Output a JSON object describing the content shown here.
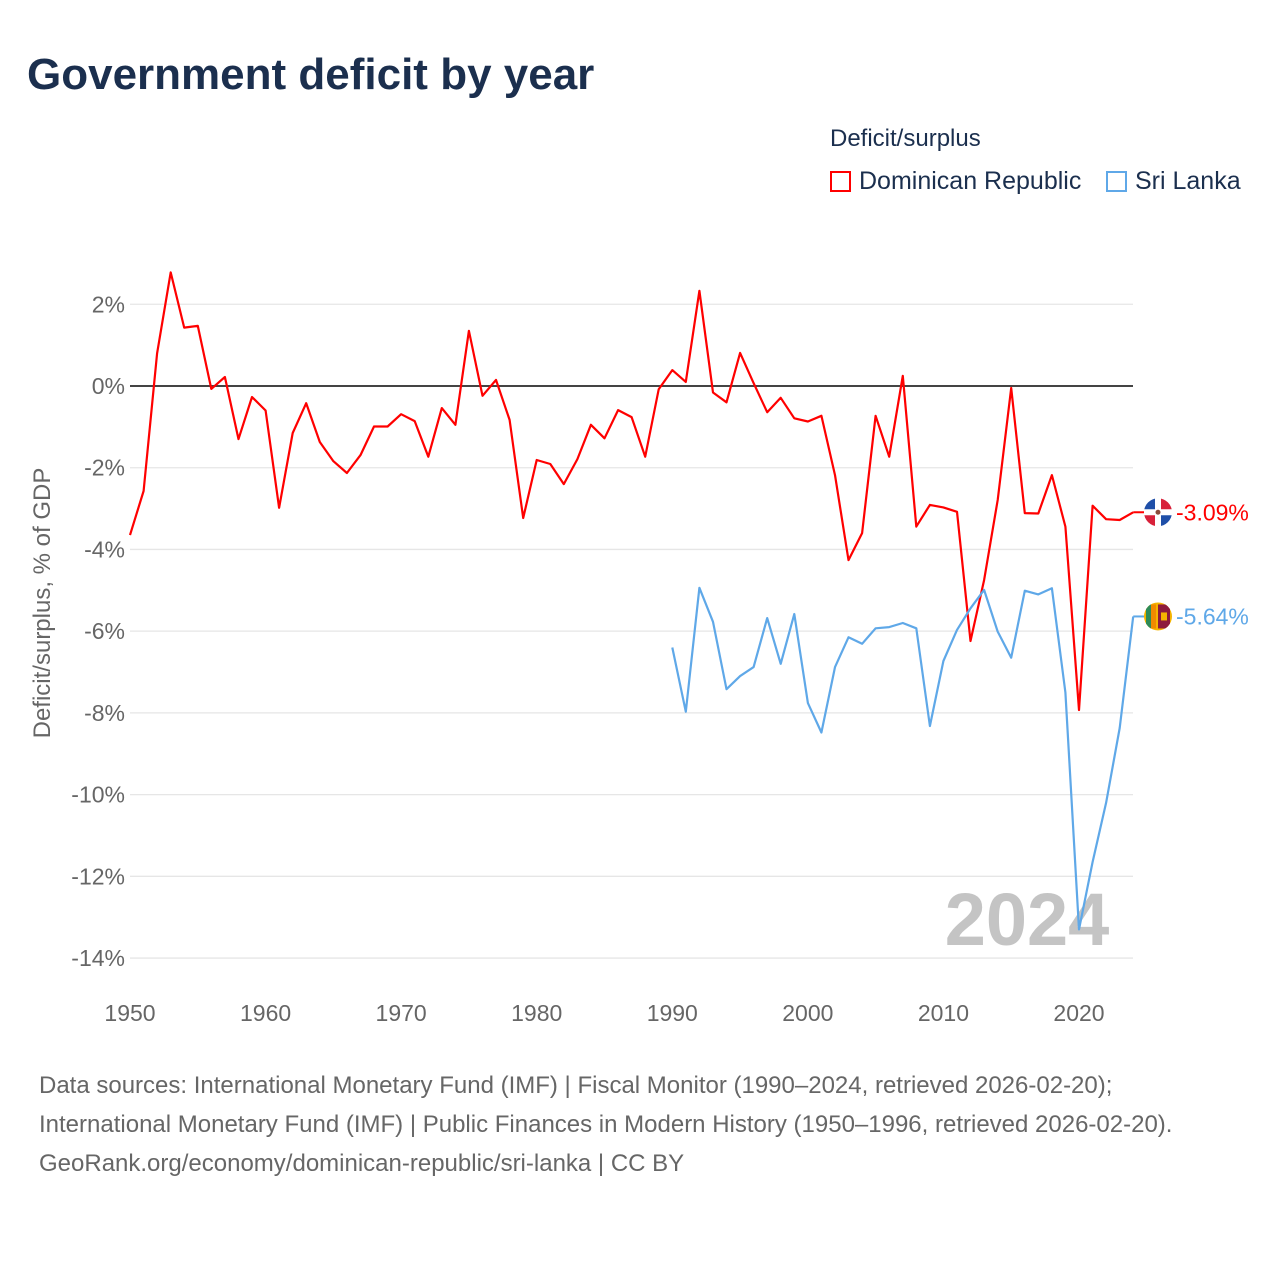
{
  "title": "Government deficit by year",
  "legend": {
    "title": "Deficit/surplus",
    "position": "top-right"
  },
  "year_watermark": "2024",
  "footer": {
    "sources": "Data sources: International Monetary Fund (IMF) | Fiscal Monitor (1990–2024, retrieved 2026-02-20); International Monetary Fund (IMF) | Public Finances in Modern History (1950–1996, retrieved 2026-02-20).",
    "credit": "GeoRank.org/economy/dominican-republic/sri-lanka | CC BY"
  },
  "chart_data": {
    "type": "line",
    "title": "Government deficit by year",
    "xlabel": "",
    "ylabel": "Deficit/surplus, % of GDP",
    "xlim": [
      1950,
      2024
    ],
    "ylim": [
      -14.6,
      3
    ],
    "x_ticks": [
      1950,
      1960,
      1970,
      1980,
      1990,
      2000,
      2010,
      2020
    ],
    "y_ticks": [
      2,
      0,
      -2,
      -4,
      -6,
      -8,
      -10,
      -12,
      -14
    ],
    "y_tick_labels": [
      "2%",
      "0%",
      "-2%",
      "-4%",
      "-6%",
      "-8%",
      "-10%",
      "-12%",
      "-14%"
    ],
    "x_tick_labels": [
      "1950",
      "1960",
      "1970",
      "1980",
      "1990",
      "2000",
      "2010",
      "2020"
    ],
    "grid": true,
    "series": [
      {
        "name": "Dominican Republic",
        "color": "#ff0000",
        "start_year": 1950,
        "end_label": "-3.09%",
        "values": [
          -3.65,
          -2.57,
          0.8,
          2.78,
          1.43,
          1.47,
          -0.07,
          0.22,
          -1.3,
          -0.27,
          -0.6,
          -2.98,
          -1.15,
          -0.42,
          -1.37,
          -1.84,
          -2.13,
          -1.69,
          -0.99,
          -0.99,
          -0.69,
          -0.86,
          -1.73,
          -0.54,
          -0.95,
          1.35,
          -0.24,
          0.15,
          -0.83,
          -3.23,
          -1.81,
          -1.91,
          -2.4,
          -1.79,
          -0.95,
          -1.28,
          -0.59,
          -0.76,
          -1.73,
          -0.08,
          0.39,
          0.1,
          2.33,
          -0.16,
          -0.4,
          0.81,
          0.07,
          -0.64,
          -0.29,
          -0.79,
          -0.87,
          -0.73,
          -2.18,
          -4.26,
          -3.6,
          -0.73,
          -1.73,
          0.25,
          -3.44,
          -2.91,
          -2.97,
          -3.08,
          -6.24,
          -4.75,
          -2.79,
          -0.05,
          -3.11,
          -3.12,
          -2.18,
          -3.44,
          -7.93,
          -2.93,
          -3.26,
          -3.28,
          -3.09
        ]
      },
      {
        "name": "Sri Lanka",
        "color": "#5fa8e8",
        "start_year": 1990,
        "end_label": "-5.64%",
        "values": [
          -6.4,
          -7.97,
          -4.94,
          -5.77,
          -7.42,
          -7.1,
          -6.88,
          -5.68,
          -6.8,
          -5.58,
          -7.76,
          -8.48,
          -6.88,
          -6.15,
          -6.31,
          -5.93,
          -5.9,
          -5.8,
          -5.93,
          -8.32,
          -6.73,
          -5.97,
          -5.44,
          -4.99,
          -6.01,
          -6.65,
          -5.01,
          -5.1,
          -4.95,
          -7.5,
          -13.3,
          -11.65,
          -10.2,
          -8.37,
          -5.64
        ]
      }
    ]
  }
}
